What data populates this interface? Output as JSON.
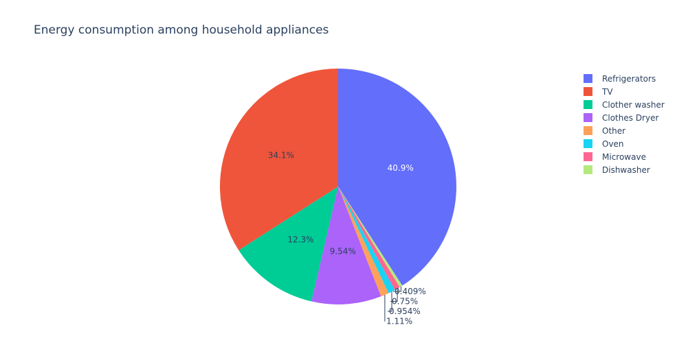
{
  "chart_data": {
    "type": "pie",
    "title": "Energy consumption among household appliances",
    "legend_position": "right",
    "slices": [
      {
        "label": "Refrigerators",
        "percent": 40.9,
        "display": "40.9%",
        "color": "#636efa",
        "label_color": "#ffffff",
        "label_position": "inside"
      },
      {
        "label": "Dishwasher",
        "percent": 0.409,
        "display": "0.409%",
        "color": "#b6e880",
        "label_color": "#2a3f5f",
        "label_position": "outside"
      },
      {
        "label": "Microwave",
        "percent": 0.75,
        "display": "0.75%",
        "color": "#ff6692",
        "label_color": "#2a3f5f",
        "label_position": "outside"
      },
      {
        "label": "Oven",
        "percent": 0.954,
        "display": "0.954%",
        "color": "#19d3f3",
        "label_color": "#2a3f5f",
        "label_position": "outside"
      },
      {
        "label": "Other",
        "percent": 1.11,
        "display": "1.11%",
        "color": "#ffa15a",
        "label_color": "#2a3f5f",
        "label_position": "outside"
      },
      {
        "label": "Clothes Dryer",
        "percent": 9.54,
        "display": "9.54%",
        "color": "#ab63fa",
        "label_color": "#2a3f5f",
        "label_position": "inside"
      },
      {
        "label": "Clother washer",
        "percent": 12.3,
        "display": "12.3%",
        "color": "#00cc96",
        "label_color": "#2a3f5f",
        "label_position": "inside"
      },
      {
        "label": "TV",
        "percent": 34.1,
        "display": "34.1%",
        "color": "#ef553b",
        "label_color": "#2a3f5f",
        "label_position": "inside"
      }
    ],
    "legend_order": [
      "Refrigerators",
      "TV",
      "Clother washer",
      "Clothes Dryer",
      "Other",
      "Oven",
      "Microwave",
      "Dishwasher"
    ]
  }
}
